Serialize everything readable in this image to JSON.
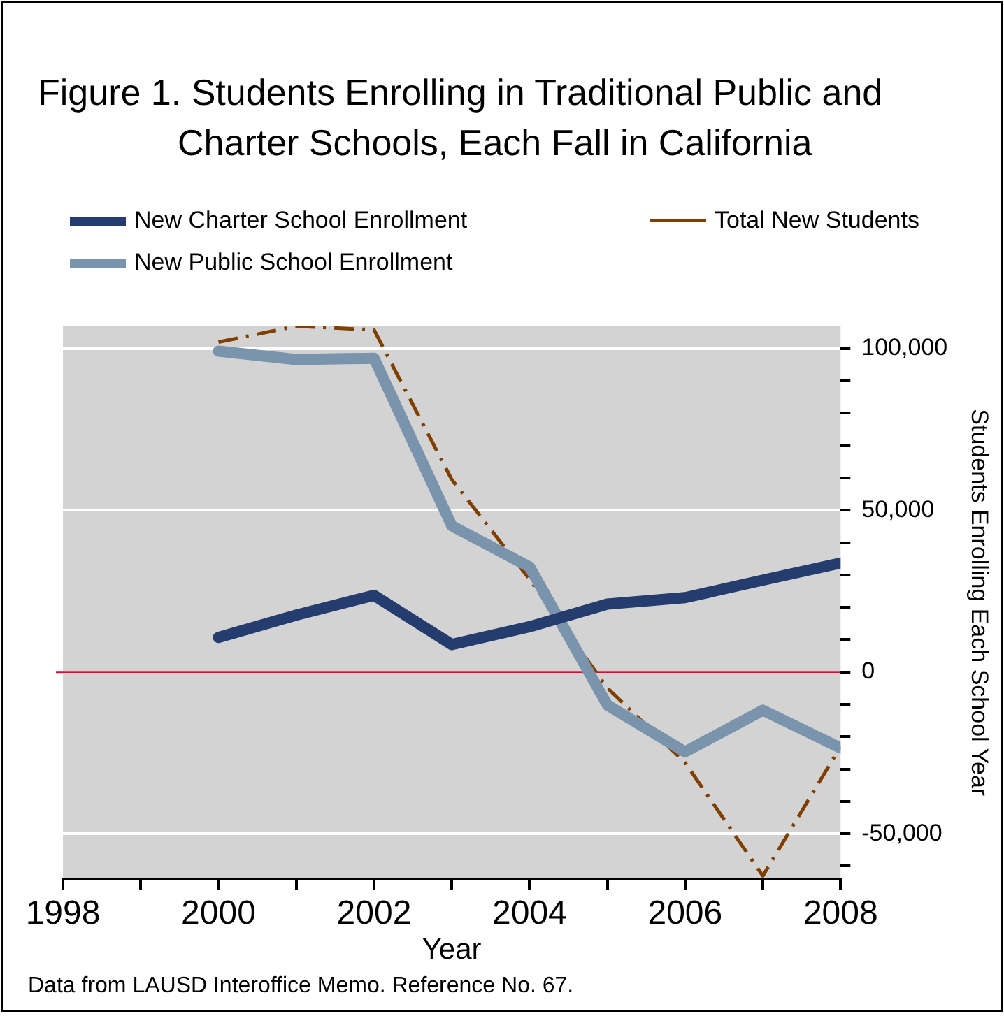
{
  "chart_data": {
    "type": "line",
    "title": "Figure 1. Students Enrolling in Traditional Public and Charter Schools, Each Fall in California",
    "xlabel": "Year",
    "ylabel": "Students Enrolling Each School Year",
    "x": [
      2000,
      2001,
      2002,
      2003,
      2004,
      2005,
      2006,
      2007,
      2008
    ],
    "series": [
      {
        "name": "New Charter School Enrollment",
        "color": "#253d6e",
        "line_style": "solid",
        "values": [
          10700,
          17600,
          23700,
          8500,
          14000,
          21000,
          23000,
          28400,
          33700
        ]
      },
      {
        "name": "New Public School Enrollment",
        "color": "#7a94ad",
        "line_style": "solid",
        "values": [
          99200,
          96600,
          97000,
          45200,
          32500,
          -10200,
          -24700,
          -11800,
          -23500
        ]
      },
      {
        "name": "Total New Students",
        "color": "#7f3f00",
        "line_style": "dashed",
        "values": [
          102000,
          106900,
          105800,
          59500,
          28700,
          -4900,
          -28000,
          -63000,
          -23000
        ]
      }
    ],
    "xlim": [
      1998,
      2008
    ],
    "xticks": [
      1998,
      {
        "value": 1999,
        "label": null
      },
      2000,
      {
        "value": 2001,
        "label": null
      },
      2002,
      {
        "value": 2003,
        "label": null
      },
      2004,
      {
        "value": 2005,
        "label": null
      },
      2006,
      {
        "value": 2007,
        "label": null
      },
      2008
    ],
    "ylim": [
      -64000,
      107000
    ],
    "yticks": [
      {
        "value": -60000,
        "label": null
      },
      {
        "value": -50000,
        "label": "-50,000"
      },
      {
        "value": -40000,
        "label": null
      },
      {
        "value": -30000,
        "label": null
      },
      {
        "value": -20000,
        "label": null
      },
      {
        "value": -10000,
        "label": null
      },
      0,
      {
        "value": 10000,
        "label": null
      },
      {
        "value": 20000,
        "label": null
      },
      {
        "value": 30000,
        "label": null
      },
      {
        "value": 40000,
        "label": null
      },
      {
        "value": 50000,
        "label": "50,000"
      },
      {
        "value": 60000,
        "label": null
      },
      {
        "value": 70000,
        "label": null
      },
      {
        "value": 80000,
        "label": null
      },
      {
        "value": 90000,
        "label": null
      },
      {
        "value": 100000,
        "label": "100,000"
      }
    ],
    "ref_lines": [
      {
        "axis": "y",
        "value": 0,
        "color": "#d0103a"
      }
    ],
    "grid": "y",
    "legend": "top",
    "marker": "none",
    "annotations": [
      "Data from LAUSD Interoffice Memo.  Reference No. 67."
    ]
  }
}
